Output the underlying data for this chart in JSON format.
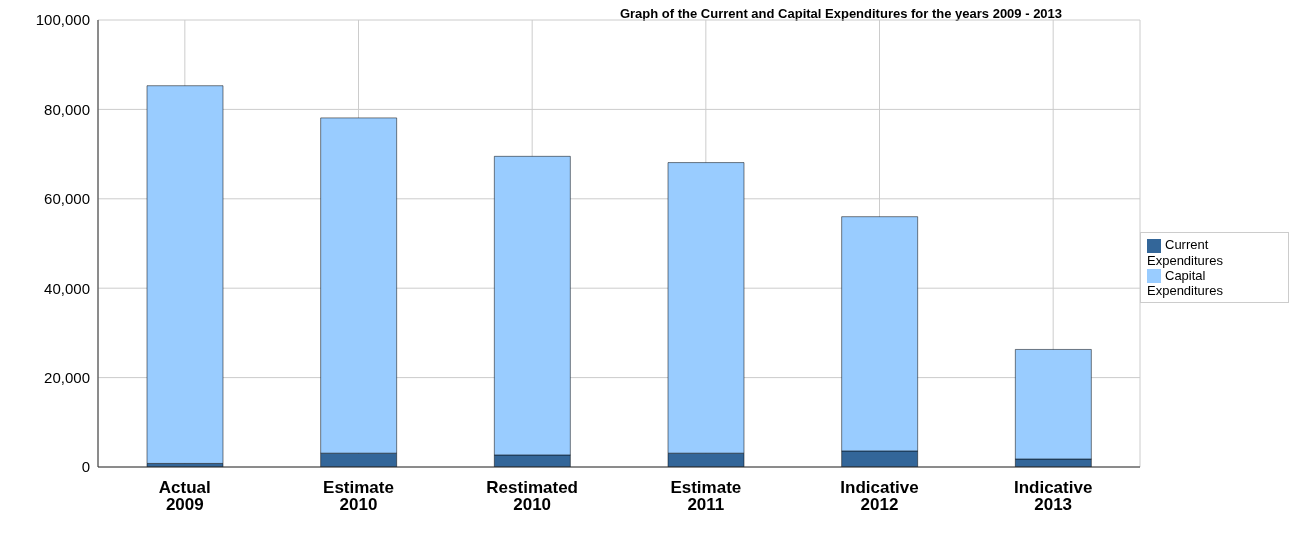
{
  "chart_data": {
    "type": "bar",
    "stacked": true,
    "title": "Graph of the Current and Capital Expenditures for the years 2009 - 2013",
    "categories": [
      "Actual 2009",
      "Estimate 2010",
      "Restimated 2010",
      "Estimate 2011",
      "Indicative 2012",
      "Indicative 2013"
    ],
    "series": [
      {
        "name": "Current Expenditures",
        "color": "#336699",
        "values": [
          800,
          3100,
          2700,
          3100,
          3600,
          1800
        ]
      },
      {
        "name": "Capital Expenditures",
        "color": "#99ccff",
        "values": [
          84500,
          75000,
          66800,
          65000,
          52400,
          24500
        ]
      }
    ],
    "ylim": [
      0,
      100000
    ],
    "yticks": [
      {
        "value": 0,
        "label": "0"
      },
      {
        "value": 20000,
        "label": "20,000"
      },
      {
        "value": 40000,
        "label": "40,000"
      },
      {
        "value": 60000,
        "label": "60,000"
      },
      {
        "value": 80000,
        "label": "80,000"
      },
      {
        "value": 100000,
        "label": "100,000"
      }
    ],
    "grid": true,
    "legend": "right"
  }
}
